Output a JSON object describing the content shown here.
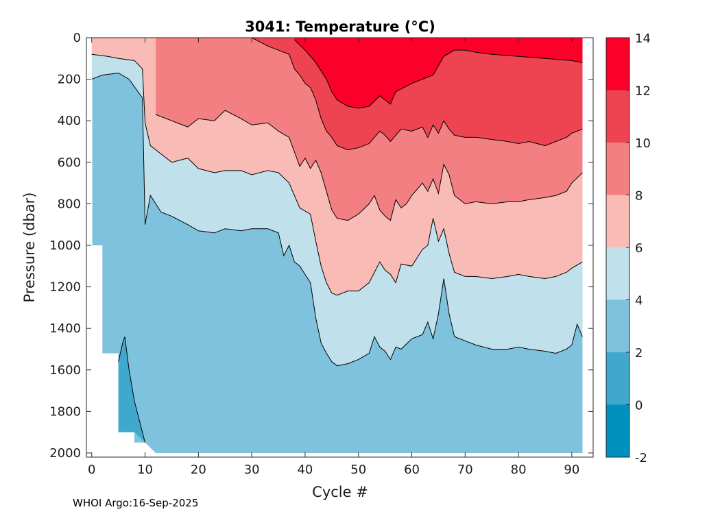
{
  "chart_data": {
    "type": "heatmap",
    "title": "3041:  Temperature (°C)",
    "xlabel": "Cycle #",
    "ylabel": "Pressure (dbar)",
    "xlim": [
      -1,
      94
    ],
    "ylim": [
      0,
      2020
    ],
    "y_reversed": true,
    "xticks": [
      "0",
      "10",
      "20",
      "30",
      "40",
      "50",
      "60",
      "70",
      "80",
      "90"
    ],
    "xtick_values": [
      0,
      10,
      20,
      30,
      40,
      50,
      60,
      70,
      80,
      90
    ],
    "yticks": [
      "0",
      "200",
      "400",
      "600",
      "800",
      "1000",
      "1200",
      "1400",
      "1600",
      "1800",
      "2000"
    ],
    "ytick_values": [
      0,
      200,
      400,
      600,
      800,
      1000,
      1200,
      1400,
      1600,
      1800,
      2000
    ],
    "colorbar": {
      "ticks": [
        "-2",
        "0",
        "2",
        "4",
        "6",
        "8",
        "10",
        "12",
        "14"
      ],
      "tick_values": [
        -2,
        0,
        2,
        4,
        6,
        8,
        10,
        12,
        14
      ],
      "levels": [
        {
          "range": [
            -2,
            0
          ],
          "color": "#0090bd"
        },
        {
          "range": [
            0,
            2
          ],
          "color": "#40a8cd"
        },
        {
          "range": [
            2,
            4
          ],
          "color": "#7fc2de"
        },
        {
          "range": [
            4,
            6
          ],
          "color": "#c0e0ec"
        },
        {
          "range": [
            6,
            8
          ],
          "color": "#f9bbb5"
        },
        {
          "range": [
            8,
            10
          ],
          "color": "#f37f82"
        },
        {
          "range": [
            10,
            12
          ],
          "color": "#ee4350"
        },
        {
          "range": [
            12,
            14
          ],
          "color": "#fb0028"
        }
      ]
    },
    "data_extent_bottom": [
      {
        "x": 0.1,
        "p": 1000
      },
      {
        "x": 2,
        "p": 1000
      },
      {
        "x": 2,
        "p": 1520
      },
      {
        "x": 5,
        "p": 1520
      },
      {
        "x": 5,
        "p": 1900
      },
      {
        "x": 8,
        "p": 1900
      },
      {
        "x": 8,
        "p": 1950
      },
      {
        "x": 10,
        "p": 1950
      },
      {
        "x": 12,
        "p": 2000
      },
      {
        "x": 92,
        "p": 2000
      }
    ],
    "contours": [
      {
        "level": 2,
        "x": [
          5,
          5.8,
          6.2,
          7,
          8,
          9,
          10
        ],
        "p": [
          1560,
          1470,
          1440,
          1600,
          1750,
          1850,
          1950
        ]
      },
      {
        "level": 4,
        "x": [
          0,
          2,
          5,
          7,
          9.5,
          10,
          11,
          13,
          15,
          18,
          20,
          23,
          25,
          28,
          30,
          33,
          35,
          36,
          37,
          38,
          39,
          41,
          42,
          43,
          44,
          45,
          46,
          48,
          50,
          52,
          53,
          54,
          55,
          56,
          57,
          58,
          60,
          62,
          63,
          64,
          65,
          66,
          67,
          68,
          70,
          72,
          75,
          78,
          80,
          82,
          85,
          87,
          89,
          90,
          91,
          92
        ],
        "p": [
          200,
          180,
          170,
          200,
          290,
          900,
          760,
          840,
          860,
          900,
          930,
          940,
          920,
          930,
          920,
          920,
          940,
          1050,
          1000,
          1080,
          1100,
          1180,
          1350,
          1470,
          1520,
          1560,
          1580,
          1570,
          1550,
          1520,
          1440,
          1490,
          1510,
          1550,
          1490,
          1500,
          1450,
          1430,
          1370,
          1450,
          1330,
          1160,
          1330,
          1440,
          1460,
          1480,
          1500,
          1500,
          1490,
          1500,
          1510,
          1520,
          1500,
          1480,
          1380,
          1440
        ]
      },
      {
        "level": 6,
        "x": [
          0,
          3,
          5,
          8,
          9.5,
          10,
          11,
          13,
          15,
          18,
          20,
          23,
          25,
          28,
          30,
          33,
          35,
          37,
          39,
          41,
          42,
          43,
          44,
          45,
          46,
          48,
          50,
          52,
          54,
          55,
          56,
          57,
          58,
          60,
          62,
          63,
          64,
          65,
          66,
          67,
          68,
          70,
          72,
          75,
          78,
          80,
          82,
          85,
          87,
          89,
          90,
          92
        ],
        "p": [
          80,
          90,
          100,
          110,
          150,
          410,
          520,
          560,
          600,
          580,
          630,
          650,
          640,
          640,
          660,
          640,
          650,
          700,
          820,
          850,
          980,
          1100,
          1180,
          1230,
          1240,
          1220,
          1220,
          1180,
          1080,
          1120,
          1140,
          1180,
          1090,
          1100,
          1020,
          1000,
          870,
          980,
          920,
          1040,
          1130,
          1150,
          1150,
          1160,
          1150,
          1140,
          1150,
          1160,
          1150,
          1130,
          1110,
          1080
        ]
      },
      {
        "level": 8,
        "x": [
          12,
          15,
          18,
          20,
          23,
          25,
          28,
          30,
          33,
          35,
          37,
          38,
          39,
          40,
          41,
          42,
          43,
          44,
          45,
          46,
          48,
          50,
          52,
          53,
          54,
          55,
          56,
          57,
          58,
          59,
          60,
          62,
          63,
          64,
          65,
          66,
          67,
          68,
          70,
          72,
          75,
          78,
          80,
          82,
          85,
          87,
          89,
          90,
          92
        ],
        "p": [
          370,
          400,
          430,
          390,
          400,
          350,
          390,
          420,
          410,
          450,
          480,
          550,
          620,
          580,
          630,
          590,
          650,
          740,
          830,
          870,
          880,
          850,
          800,
          760,
          830,
          860,
          880,
          780,
          820,
          800,
          760,
          700,
          740,
          680,
          750,
          610,
          660,
          760,
          800,
          790,
          800,
          790,
          790,
          780,
          770,
          760,
          740,
          700,
          650
        ]
      },
      {
        "level": 10,
        "x": [
          30,
          33,
          35,
          37,
          38,
          39,
          40,
          41,
          42,
          43,
          44,
          45,
          46,
          48,
          50,
          52,
          54,
          55,
          56,
          58,
          60,
          62,
          63,
          64,
          65,
          66,
          67,
          68,
          70,
          72,
          75,
          78,
          80,
          82,
          85,
          87,
          89,
          90,
          92
        ],
        "p": [
          0,
          40,
          60,
          80,
          150,
          180,
          220,
          240,
          300,
          390,
          450,
          480,
          520,
          540,
          530,
          510,
          450,
          470,
          500,
          440,
          450,
          430,
          480,
          420,
          460,
          400,
          440,
          470,
          480,
          480,
          490,
          500,
          510,
          500,
          520,
          500,
          480,
          460,
          440
        ]
      },
      {
        "level": 12,
        "x": [
          38,
          40,
          42,
          44,
          45,
          46,
          48,
          50,
          52,
          54,
          55,
          56,
          57,
          60,
          62,
          64,
          66,
          68,
          70,
          72,
          75,
          80,
          85,
          90,
          92
        ],
        "p": [
          10,
          60,
          120,
          200,
          260,
          300,
          330,
          340,
          330,
          280,
          300,
          320,
          260,
          220,
          200,
          180,
          90,
          60,
          60,
          70,
          80,
          90,
          100,
          110,
          120
        ]
      }
    ]
  },
  "footer": "WHOI Argo:16-Sep-2025"
}
